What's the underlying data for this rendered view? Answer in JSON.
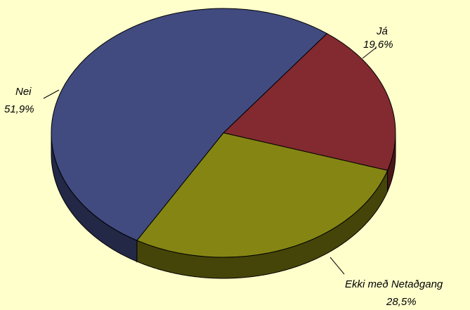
{
  "chart_data": {
    "type": "pie",
    "style": "3d",
    "title": "",
    "background": "#ffffcc",
    "slices": [
      {
        "label": "Já",
        "value_label": "19,6%",
        "value": 19.6,
        "color": "#822a30",
        "side_color": "#4a1719"
      },
      {
        "label": "Ekki með Netaðgang",
        "value_label": "28,5%",
        "value": 28.5,
        "color": "#858514",
        "side_color": "#45450a"
      },
      {
        "label": "Nei",
        "value_label": "51,9%",
        "value": 51.9,
        "color": "#414b80",
        "side_color": "#222845"
      }
    ]
  }
}
